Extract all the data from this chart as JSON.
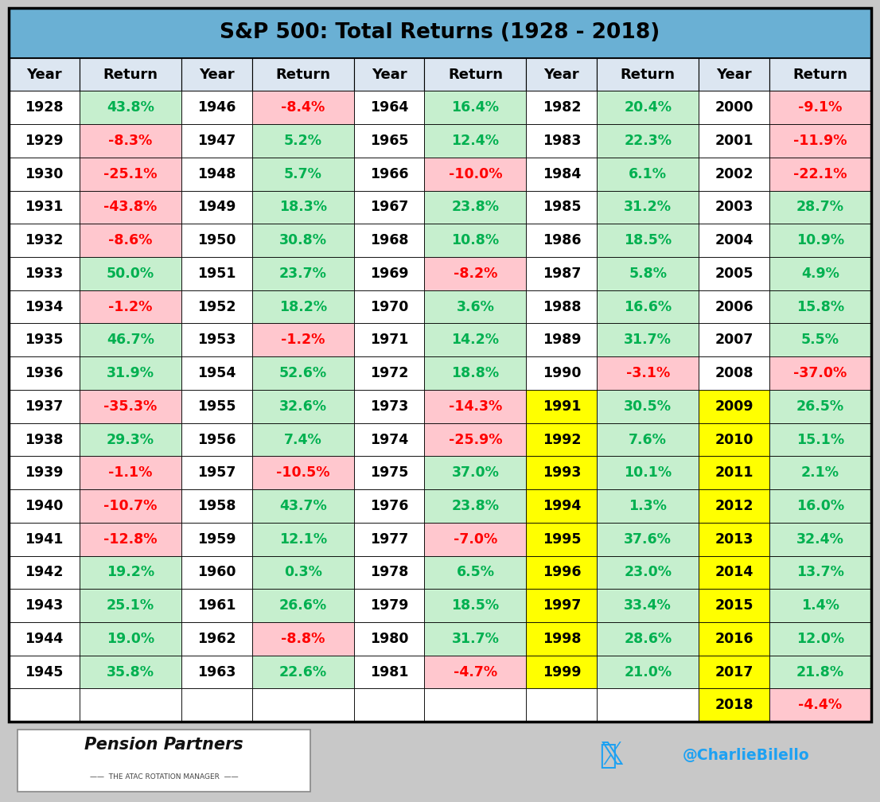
{
  "title": "S&P 500: Total Returns (1928 - 2018)",
  "title_bg": "#6ab0d4",
  "header_bg": "#dce6f1",
  "table_border": "#000000",
  "col_header": [
    "Year",
    "Return",
    "Year",
    "Return",
    "Year",
    "Return",
    "Year",
    "Return",
    "Year",
    "Return"
  ],
  "data": [
    [
      1928,
      43.8,
      1946,
      -8.4,
      1964,
      16.4,
      1982,
      20.4,
      2000,
      -9.1
    ],
    [
      1929,
      -8.3,
      1947,
      5.2,
      1965,
      12.4,
      1983,
      22.3,
      2001,
      -11.9
    ],
    [
      1930,
      -25.1,
      1948,
      5.7,
      1966,
      -10.0,
      1984,
      6.1,
      2002,
      -22.1
    ],
    [
      1931,
      -43.8,
      1949,
      18.3,
      1967,
      23.8,
      1985,
      31.2,
      2003,
      28.7
    ],
    [
      1932,
      -8.6,
      1950,
      30.8,
      1968,
      10.8,
      1986,
      18.5,
      2004,
      10.9
    ],
    [
      1933,
      50.0,
      1951,
      23.7,
      1969,
      -8.2,
      1987,
      5.8,
      2005,
      4.9
    ],
    [
      1934,
      -1.2,
      1952,
      18.2,
      1970,
      3.6,
      1988,
      16.6,
      2006,
      15.8
    ],
    [
      1935,
      46.7,
      1953,
      -1.2,
      1971,
      14.2,
      1989,
      31.7,
      2007,
      5.5
    ],
    [
      1936,
      31.9,
      1954,
      52.6,
      1972,
      18.8,
      1990,
      -3.1,
      2008,
      -37.0
    ],
    [
      1937,
      -35.3,
      1955,
      32.6,
      1973,
      -14.3,
      1991,
      30.5,
      2009,
      26.5
    ],
    [
      1938,
      29.3,
      1956,
      7.4,
      1974,
      -25.9,
      1992,
      7.6,
      2010,
      15.1
    ],
    [
      1939,
      -1.1,
      1957,
      -10.5,
      1975,
      37.0,
      1993,
      10.1,
      2011,
      2.1
    ],
    [
      1940,
      -10.7,
      1958,
      43.7,
      1976,
      23.8,
      1994,
      1.3,
      2012,
      16.0
    ],
    [
      1941,
      -12.8,
      1959,
      12.1,
      1977,
      -7.0,
      1995,
      37.6,
      2013,
      32.4
    ],
    [
      1942,
      19.2,
      1960,
      0.3,
      1978,
      6.5,
      1996,
      23.0,
      2014,
      13.7
    ],
    [
      1943,
      25.1,
      1961,
      26.6,
      1979,
      18.5,
      1997,
      33.4,
      2015,
      1.4
    ],
    [
      1944,
      19.0,
      1962,
      -8.8,
      1980,
      31.7,
      1998,
      28.6,
      2016,
      12.0
    ],
    [
      1945,
      35.8,
      1963,
      22.6,
      1981,
      -4.7,
      1999,
      21.0,
      2017,
      21.8
    ],
    [
      null,
      null,
      null,
      null,
      null,
      null,
      null,
      null,
      2018,
      -4.4
    ]
  ],
  "yellow_years": [
    1991,
    1992,
    1993,
    1994,
    1995,
    1996,
    1997,
    1998,
    1999,
    2009,
    2010,
    2011,
    2012,
    2013,
    2014,
    2015,
    2016,
    2017,
    2018
  ],
  "pos_color": "#c6efce",
  "neg_color": "#ffc7ce",
  "yellow_color": "#ffff00",
  "white_cell": "#ffffff",
  "pos_text": "#00b050",
  "neg_text": "#ff0000",
  "yellow_text": "#008000",
  "yellow_neg_text": "#ff0000",
  "year_text": "#000000",
  "header_text": "#000000",
  "bg_color": "#c8c8c8",
  "footer_bg": "#c8c8c8"
}
